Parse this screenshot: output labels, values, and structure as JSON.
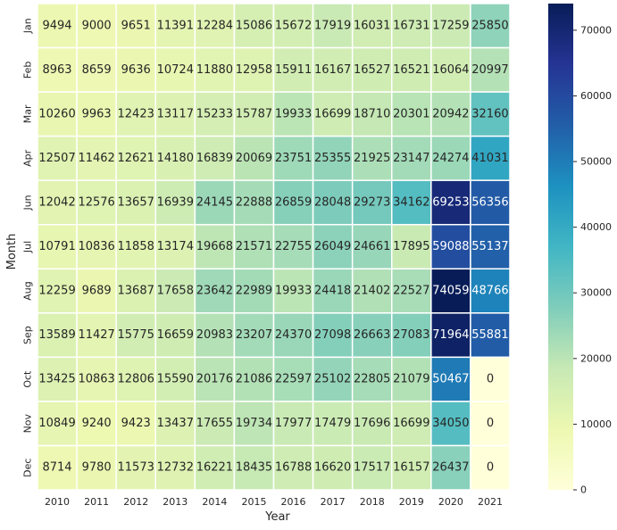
{
  "chart_data": {
    "type": "heatmap",
    "xlabel": "Year",
    "ylabel": "Month",
    "x": [
      "2010",
      "2011",
      "2012",
      "2013",
      "2014",
      "2015",
      "2016",
      "2017",
      "2018",
      "2019",
      "2020",
      "2021"
    ],
    "y": [
      "Jan",
      "Feb",
      "Mar",
      "Apr",
      "Jun",
      "Jul",
      "Aug",
      "Sep",
      "Oct",
      "Nov",
      "Dec"
    ],
    "values": [
      [
        9494,
        9000,
        9651,
        11391,
        12284,
        15086,
        15672,
        17919,
        16031,
        16731,
        17259,
        25850
      ],
      [
        8963,
        8659,
        9636,
        10724,
        11880,
        12958,
        15911,
        16167,
        16527,
        16521,
        16064,
        20997
      ],
      [
        10260,
        9963,
        12423,
        13117,
        15233,
        15787,
        19933,
        16699,
        18710,
        20301,
        20942,
        32160
      ],
      [
        12507,
        11462,
        12621,
        14180,
        16839,
        20069,
        23751,
        25355,
        21925,
        23147,
        24274,
        41031
      ],
      [
        12042,
        12576,
        13657,
        16939,
        24145,
        22888,
        26859,
        28048,
        29273,
        34162,
        69253,
        56356
      ],
      [
        10791,
        10836,
        11858,
        13174,
        19668,
        21571,
        22755,
        26049,
        24661,
        17895,
        59088,
        55137
      ],
      [
        12259,
        9689,
        13687,
        17658,
        23642,
        22989,
        19933,
        24418,
        21402,
        22527,
        74059,
        48766
      ],
      [
        13589,
        11427,
        15775,
        16659,
        20983,
        23207,
        24370,
        27098,
        26663,
        27083,
        71964,
        55881
      ],
      [
        13425,
        10863,
        12806,
        15590,
        20176,
        21086,
        22597,
        25102,
        22805,
        21079,
        50467,
        0
      ],
      [
        10849,
        9240,
        9423,
        13437,
        17655,
        19734,
        17977,
        17479,
        17696,
        16699,
        34050,
        0
      ],
      [
        8714,
        9780,
        11573,
        12732,
        16221,
        18435,
        16788,
        16620,
        17517,
        16157,
        26437,
        0
      ]
    ],
    "colorbar": {
      "colormap": "YlGnBu",
      "range": [
        0,
        74059
      ],
      "ticks": [
        "0",
        "10000",
        "20000",
        "30000",
        "40000",
        "50000",
        "60000",
        "70000"
      ],
      "tick_values": [
        0,
        10000,
        20000,
        30000,
        40000,
        50000,
        60000,
        70000
      ]
    },
    "grid": "white cell separators",
    "colors": [
      "#ffffd9",
      "#edf8b1",
      "#c7e9b4",
      "#7fcdbb",
      "#41b6c4",
      "#1d91c0",
      "#225ea8",
      "#253494",
      "#081d58"
    ]
  }
}
